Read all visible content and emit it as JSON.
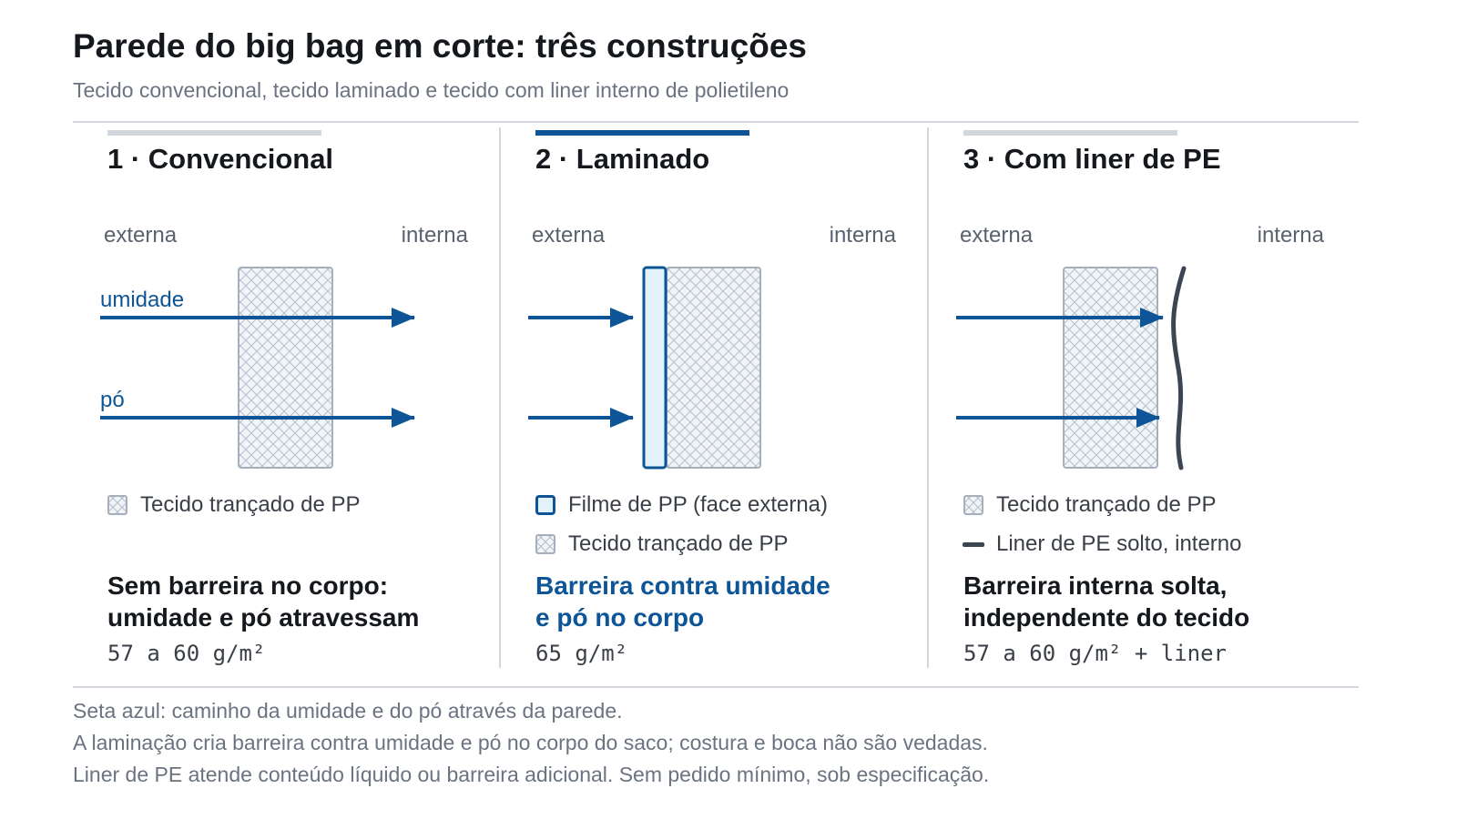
{
  "header": {
    "title": "Parede do big bag em corte: três construções",
    "subtitle": "Tecido convencional, tecido laminado e tecido com liner interno de polietileno"
  },
  "colors": {
    "accent": "#0d5596",
    "film_fill": "#e3f1fb",
    "fabric_fill": "#f1f4f7",
    "fabric_hatch": "#b6bfcb",
    "liner": "#3b4652",
    "rule": "#d2d7de"
  },
  "panels": [
    {
      "title": "1 · Convencional",
      "side_outer": "externa",
      "side_inner": "interna",
      "arrow_labels": [
        "umidade",
        "pó"
      ],
      "legend": [
        {
          "swatch": "fabric-hatch",
          "label": "Tecido trançado de PP"
        }
      ],
      "summary_lines": [
        "Sem barreira no corpo:",
        "umidade e pó atravessam"
      ],
      "gsm": "57 a 60 g/m²",
      "active": false
    },
    {
      "title": "2 · Laminado",
      "side_outer": "externa",
      "side_inner": "interna",
      "arrow_labels": [],
      "legend": [
        {
          "swatch": "pp-film",
          "label": "Filme de PP (face externa)"
        },
        {
          "swatch": "fabric-hatch",
          "label": "Tecido trançado de PP"
        }
      ],
      "summary_lines": [
        "Barreira contra umidade",
        "e pó no corpo"
      ],
      "gsm": "65 g/m²",
      "active": true
    },
    {
      "title": "3 · Com liner de PE",
      "side_outer": "externa",
      "side_inner": "interna",
      "arrow_labels": [],
      "legend": [
        {
          "swatch": "fabric-hatch",
          "label": "Tecido trançado de PP"
        },
        {
          "swatch": "pe-liner-line",
          "label": "Liner de PE solto, interno"
        }
      ],
      "summary_lines": [
        "Barreira interna solta,",
        "independente do tecido"
      ],
      "gsm": "57 a 60 g/m² + liner",
      "active": false
    }
  ],
  "footer": [
    "Seta azul: caminho da umidade e do pó através da parede.",
    "A laminação cria barreira contra umidade e pó no corpo do saco; costura e boca não são vedadas.",
    "Liner de PE atende conteúdo líquido ou barreira adicional. Sem pedido mínimo, sob especificação."
  ]
}
